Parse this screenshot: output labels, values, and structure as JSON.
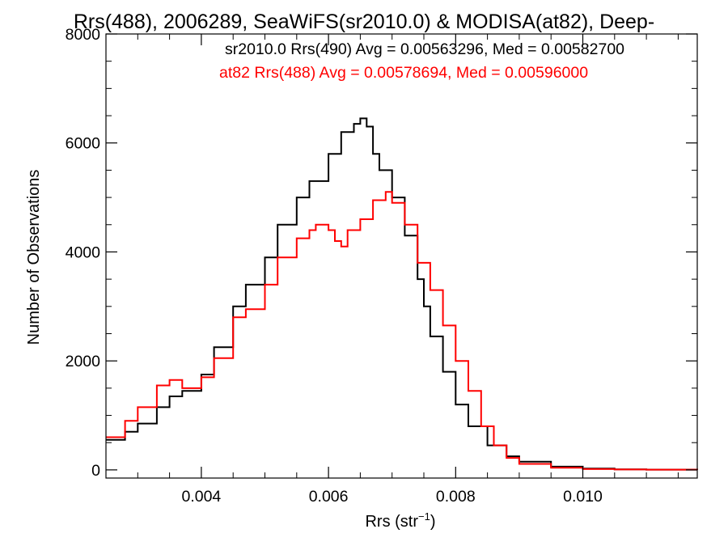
{
  "chart_data": {
    "type": "line",
    "title": "Rrs(488), 2006289, SeaWiFS(sr2010.0) & MODISA(at82), Deep-",
    "xlabel": "Rrs (str",
    "xlabel_sup": "−1",
    "xlabel_end": ")",
    "ylabel": "Number of Observations",
    "xlim": [
      0.0025,
      0.0118
    ],
    "ylim": [
      -150,
      8000
    ],
    "xticks": [
      0.004,
      0.006,
      0.008,
      0.01
    ],
    "xtick_labels": [
      "0.004",
      "0.006",
      "0.008",
      "0.010"
    ],
    "yticks": [
      0,
      2000,
      4000,
      6000,
      8000
    ],
    "ytick_labels": [
      "0",
      "2000",
      "4000",
      "6000",
      "8000"
    ],
    "grid": false,
    "legend_position": "top-right",
    "series": [
      {
        "name": "sr2010.0 Rrs(490) Avg = 0.00563296, Med = 0.00582700",
        "color": "#000000",
        "x": [
          0.0025,
          0.0028,
          0.003,
          0.0033,
          0.0035,
          0.0037,
          0.004,
          0.0042,
          0.0045,
          0.0047,
          0.005,
          0.0052,
          0.0055,
          0.0057,
          0.006,
          0.0062,
          0.0064,
          0.0065,
          0.0066,
          0.0067,
          0.0068,
          0.007,
          0.0072,
          0.0074,
          0.0075,
          0.0076,
          0.0078,
          0.008,
          0.0082,
          0.0085,
          0.0088,
          0.009,
          0.0095,
          0.01,
          0.0105,
          0.011,
          0.0118
        ],
        "y": [
          550,
          700,
          850,
          1150,
          1350,
          1450,
          1750,
          2250,
          3000,
          3400,
          3900,
          4500,
          5000,
          5300,
          5800,
          6200,
          6350,
          6450,
          6300,
          5800,
          5500,
          5000,
          4300,
          3500,
          3000,
          2450,
          1800,
          1200,
          800,
          450,
          250,
          150,
          60,
          25,
          10,
          5,
          0
        ]
      },
      {
        "name": "at82 Rrs(488) Avg = 0.00578694, Med = 0.00596000",
        "color": "#ff0000",
        "x": [
          0.0025,
          0.0028,
          0.003,
          0.0033,
          0.0035,
          0.0037,
          0.004,
          0.0042,
          0.0045,
          0.0047,
          0.005,
          0.0052,
          0.0055,
          0.0057,
          0.0058,
          0.006,
          0.0061,
          0.0062,
          0.0063,
          0.0065,
          0.0067,
          0.0069,
          0.007,
          0.0072,
          0.0074,
          0.0076,
          0.0078,
          0.008,
          0.0082,
          0.0084,
          0.0086,
          0.0088,
          0.009,
          0.0095,
          0.01,
          0.0105,
          0.011,
          0.0118
        ],
        "y": [
          600,
          900,
          1150,
          1550,
          1650,
          1500,
          1700,
          2050,
          2800,
          2950,
          3400,
          3900,
          4250,
          4400,
          4500,
          4400,
          4200,
          4100,
          4400,
          4600,
          4950,
          5100,
          4900,
          4500,
          3800,
          3300,
          2650,
          2000,
          1450,
          800,
          450,
          220,
          110,
          40,
          15,
          8,
          5,
          0
        ]
      }
    ]
  }
}
